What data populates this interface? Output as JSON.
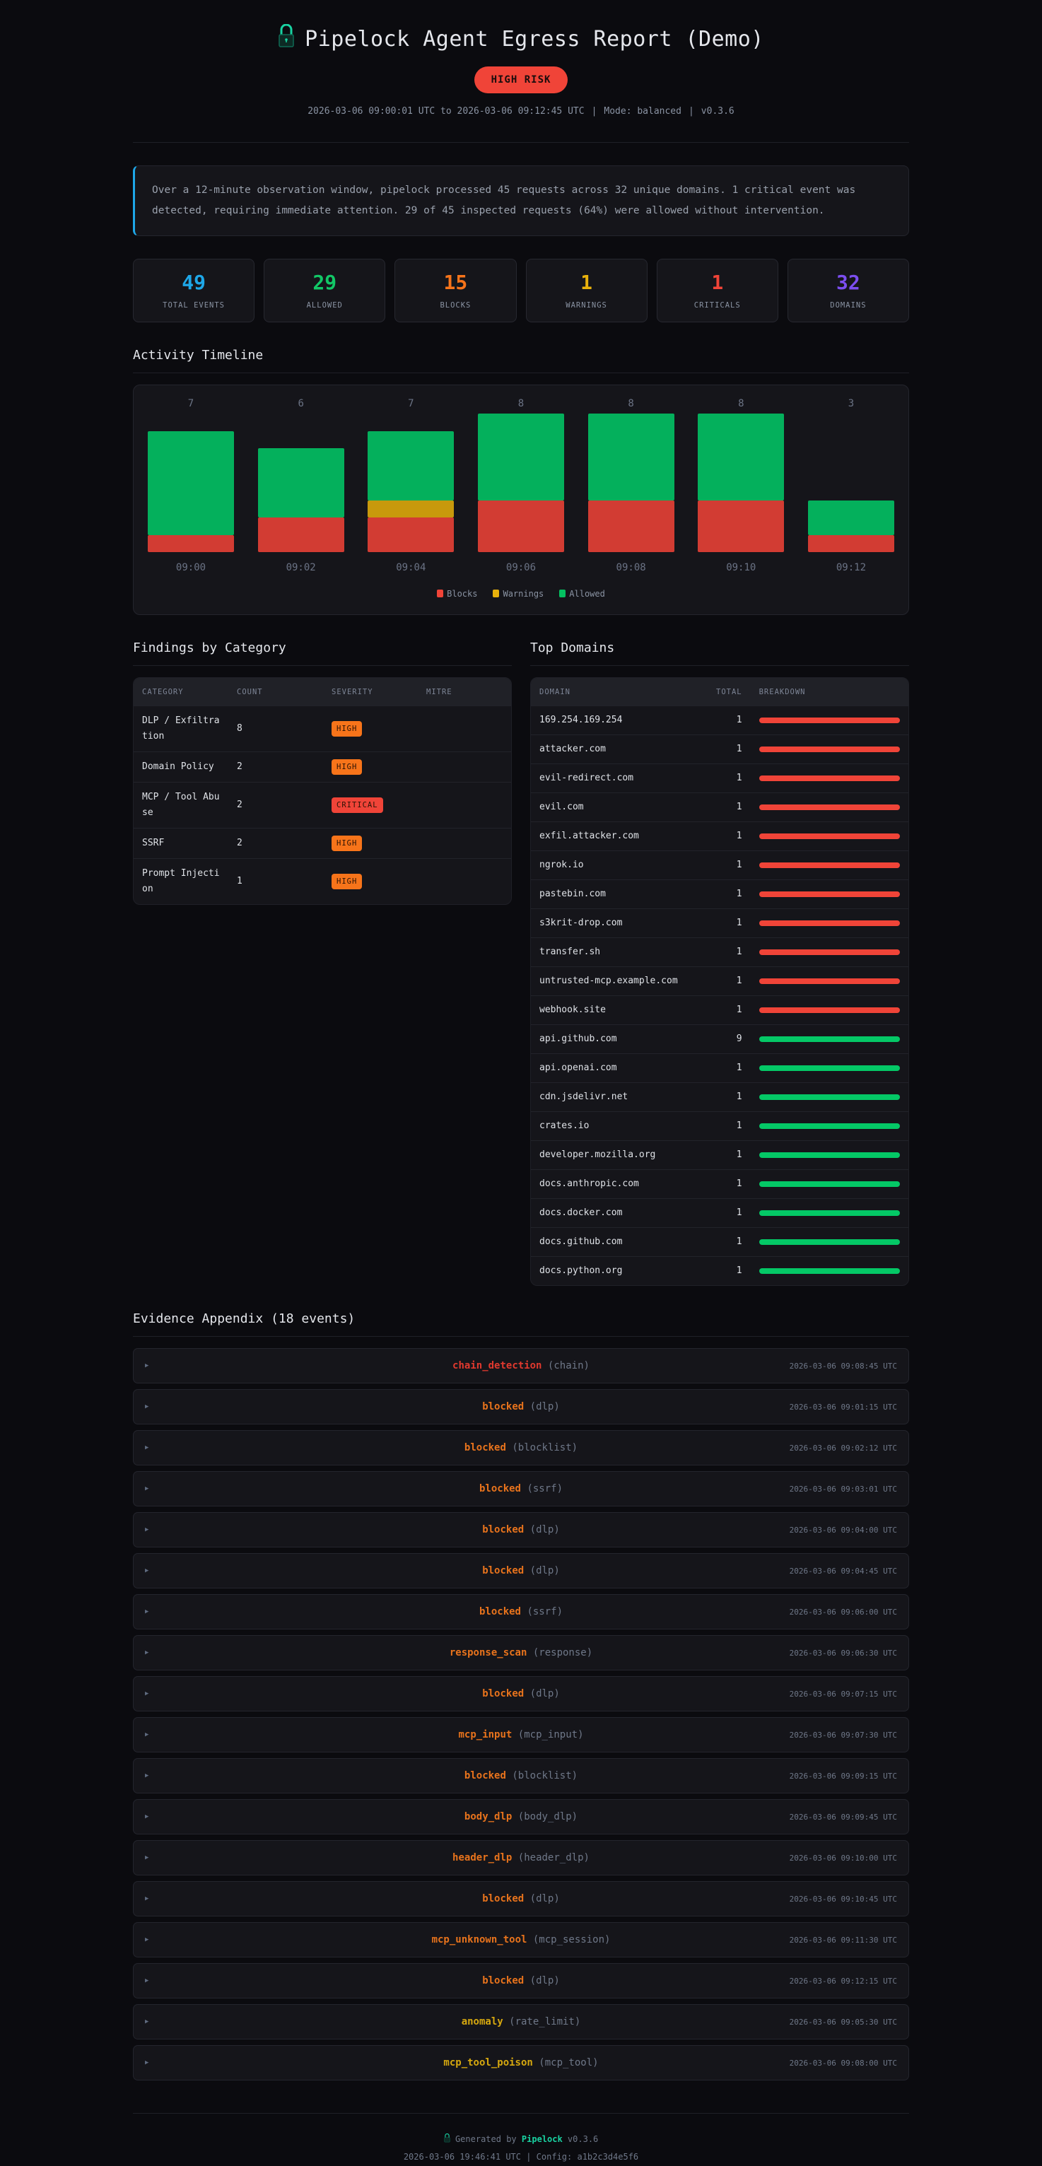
{
  "header": {
    "title": "Pipelock Agent Egress Report (Demo)",
    "icon": "lock-icon",
    "risk_badge": "HIGH RISK",
    "time_range": "2026-03-06 09:00:01 UTC to 2026-03-06 09:12:45 UTC",
    "mode": "Mode: balanced",
    "version": "v0.3.6"
  },
  "summary": "Over a 12-minute observation window, pipelock processed 45 requests across 32 unique domains. 1 critical event was detected, requiring immediate attention. 29 of 45 inspected requests (64%) were allowed without intervention.",
  "stats": [
    {
      "value": "49",
      "label": "TOTAL EVENTS",
      "color": "#1ea7e8"
    },
    {
      "value": "29",
      "label": "ALLOWED",
      "color": "#12c766"
    },
    {
      "value": "15",
      "label": "BLOCKS",
      "color": "#f7741a"
    },
    {
      "value": "1",
      "label": "WARNINGS",
      "color": "#e8b10c"
    },
    {
      "value": "1",
      "label": "CRITICALS",
      "color": "#f04438"
    },
    {
      "value": "32",
      "label": "DOMAINS",
      "color": "#7c4ef0"
    }
  ],
  "timeline": {
    "heading": "Activity Timeline",
    "legend": [
      {
        "label": "Blocks",
        "color": "#f04438"
      },
      {
        "label": "Warnings",
        "color": "#e8b10c"
      },
      {
        "label": "Allowed",
        "color": "#04c060"
      }
    ]
  },
  "chart_data": {
    "type": "bar",
    "stacked": true,
    "title": "Activity Timeline",
    "categories": [
      "09:00",
      "09:02",
      "09:04",
      "09:06",
      "09:08",
      "09:10",
      "09:12"
    ],
    "totals": [
      7,
      6,
      7,
      8,
      8,
      8,
      3
    ],
    "series": [
      {
        "name": "Blocks",
        "color": "#d23c33",
        "values": [
          1,
          2,
          2,
          3,
          3,
          3,
          1
        ]
      },
      {
        "name": "Warnings",
        "color": "#c8990c",
        "values": [
          0,
          0,
          1,
          0,
          0,
          0,
          0
        ]
      },
      {
        "name": "Allowed",
        "color": "#04b05c",
        "values": [
          6,
          4,
          4,
          5,
          5,
          5,
          2
        ]
      }
    ],
    "xlabel": "",
    "ylabel": "",
    "grid": false,
    "legend_position": "bottom"
  },
  "findings": {
    "heading": "Findings by Category",
    "columns": [
      "CATEGORY",
      "COUNT",
      "SEVERITY",
      "MITRE"
    ],
    "rows": [
      {
        "category": "DLP / Exfiltration",
        "count": "8",
        "severity": "HIGH",
        "level": "high",
        "mitre": ""
      },
      {
        "category": "Domain Policy",
        "count": "2",
        "severity": "HIGH",
        "level": "high",
        "mitre": ""
      },
      {
        "category": "MCP / Tool Abuse",
        "count": "2",
        "severity": "CRITICAL",
        "level": "critical",
        "mitre": ""
      },
      {
        "category": "SSRF",
        "count": "2",
        "severity": "HIGH",
        "level": "high",
        "mitre": ""
      },
      {
        "category": "Prompt Injection",
        "count": "1",
        "severity": "HIGH",
        "level": "high",
        "mitre": ""
      }
    ]
  },
  "domains": {
    "heading": "Top Domains",
    "columns": [
      "DOMAIN",
      "TOTAL",
      "BREAKDOWN"
    ],
    "rows": [
      {
        "domain": "169.254.169.254",
        "total": "1",
        "bar": "#f04438"
      },
      {
        "domain": "attacker.com",
        "total": "1",
        "bar": "#f04438"
      },
      {
        "domain": "evil-redirect.com",
        "total": "1",
        "bar": "#f04438"
      },
      {
        "domain": "evil.com",
        "total": "1",
        "bar": "#f04438"
      },
      {
        "domain": "exfil.attacker.com",
        "total": "1",
        "bar": "#f04438"
      },
      {
        "domain": "ngrok.io",
        "total": "1",
        "bar": "#f04438"
      },
      {
        "domain": "pastebin.com",
        "total": "1",
        "bar": "#f04438"
      },
      {
        "domain": "s3krit-drop.com",
        "total": "1",
        "bar": "#f04438"
      },
      {
        "domain": "transfer.sh",
        "total": "1",
        "bar": "#f04438"
      },
      {
        "domain": "untrusted-mcp.example.com",
        "total": "1",
        "bar": "#f04438"
      },
      {
        "domain": "webhook.site",
        "total": "1",
        "bar": "#f04438"
      },
      {
        "domain": "api.github.com",
        "total": "9",
        "bar": "#04c866"
      },
      {
        "domain": "api.openai.com",
        "total": "1",
        "bar": "#04c866"
      },
      {
        "domain": "cdn.jsdelivr.net",
        "total": "1",
        "bar": "#04c866"
      },
      {
        "domain": "crates.io",
        "total": "1",
        "bar": "#04c866"
      },
      {
        "domain": "developer.mozilla.org",
        "total": "1",
        "bar": "#04c866"
      },
      {
        "domain": "docs.anthropic.com",
        "total": "1",
        "bar": "#04c866"
      },
      {
        "domain": "docs.docker.com",
        "total": "1",
        "bar": "#04c866"
      },
      {
        "domain": "docs.github.com",
        "total": "1",
        "bar": "#04c866"
      },
      {
        "domain": "docs.python.org",
        "total": "1",
        "bar": "#04c866"
      }
    ]
  },
  "evidence": {
    "heading": "Evidence Appendix (18 events)",
    "items": [
      {
        "type": "chain_detection",
        "sub": "(chain)",
        "time": "2026-03-06 09:08:45 UTC",
        "color": "#e0392e"
      },
      {
        "type": "blocked",
        "sub": "(dlp)",
        "time": "2026-03-06 09:01:15 UTC",
        "color": "#e8731c"
      },
      {
        "type": "blocked",
        "sub": "(blocklist)",
        "time": "2026-03-06 09:02:12 UTC",
        "color": "#e8731c"
      },
      {
        "type": "blocked",
        "sub": "(ssrf)",
        "time": "2026-03-06 09:03:01 UTC",
        "color": "#e8731c"
      },
      {
        "type": "blocked",
        "sub": "(dlp)",
        "time": "2026-03-06 09:04:00 UTC",
        "color": "#e8731c"
      },
      {
        "type": "blocked",
        "sub": "(dlp)",
        "time": "2026-03-06 09:04:45 UTC",
        "color": "#e8731c"
      },
      {
        "type": "blocked",
        "sub": "(ssrf)",
        "time": "2026-03-06 09:06:00 UTC",
        "color": "#e8731c"
      },
      {
        "type": "response_scan",
        "sub": "(response)",
        "time": "2026-03-06 09:06:30 UTC",
        "color": "#e8731c"
      },
      {
        "type": "blocked",
        "sub": "(dlp)",
        "time": "2026-03-06 09:07:15 UTC",
        "color": "#e8731c"
      },
      {
        "type": "mcp_input",
        "sub": "(mcp_input)",
        "time": "2026-03-06 09:07:30 UTC",
        "color": "#e8731c"
      },
      {
        "type": "blocked",
        "sub": "(blocklist)",
        "time": "2026-03-06 09:09:15 UTC",
        "color": "#e8731c"
      },
      {
        "type": "body_dlp",
        "sub": "(body_dlp)",
        "time": "2026-03-06 09:09:45 UTC",
        "color": "#e8731c"
      },
      {
        "type": "header_dlp",
        "sub": "(header_dlp)",
        "time": "2026-03-06 09:10:00 UTC",
        "color": "#e8731c"
      },
      {
        "type": "blocked",
        "sub": "(dlp)",
        "time": "2026-03-06 09:10:45 UTC",
        "color": "#e8731c"
      },
      {
        "type": "mcp_unknown_tool",
        "sub": "(mcp_session)",
        "time": "2026-03-06 09:11:30 UTC",
        "color": "#e8731c"
      },
      {
        "type": "blocked",
        "sub": "(dlp)",
        "time": "2026-03-06 09:12:15 UTC",
        "color": "#e8731c"
      },
      {
        "type": "anomaly",
        "sub": "(rate_limit)",
        "time": "2026-03-06 09:05:30 UTC",
        "color": "#d6a80f"
      },
      {
        "type": "mcp_tool_poison",
        "sub": "(mcp_tool)",
        "time": "2026-03-06 09:08:00 UTC",
        "color": "#d6a80f"
      }
    ]
  },
  "footer": {
    "generated_prefix": "Generated by",
    "brand": "Pipelock",
    "version": "v0.3.6",
    "line2": "2026-03-06 19:46:41 UTC | Config: a1b2c3d4e5f6"
  }
}
